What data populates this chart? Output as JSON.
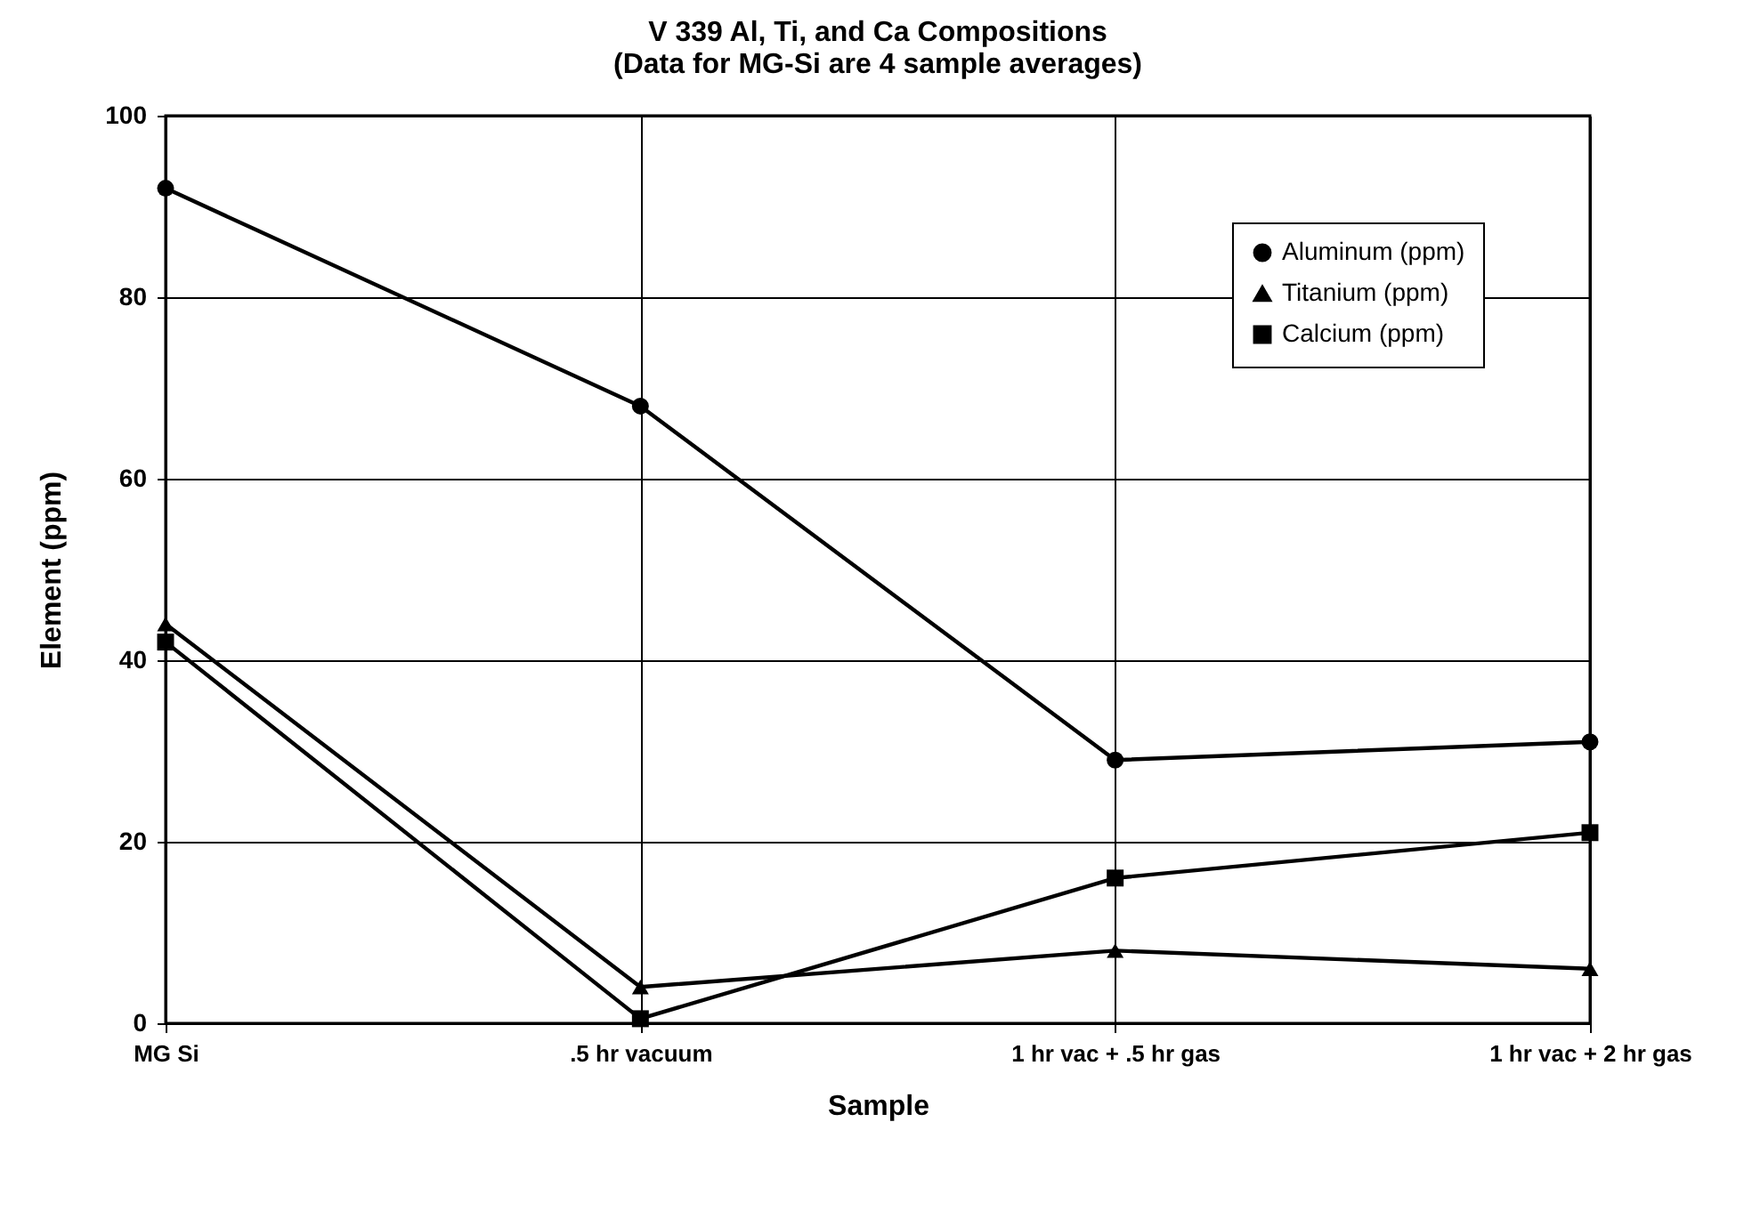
{
  "chart_data": {
    "type": "line",
    "title": "V 339 Al, Ti, and Ca Compositions",
    "subtitle": "(Data for MG-Si are 4 sample averages)",
    "xlabel": "Sample",
    "ylabel": "Element (ppm)",
    "categories": [
      "MG Si",
      ".5 hr vacuum",
      "1 hr vac + .5 hr gas",
      "1 hr vac + 2 hr gas"
    ],
    "series": [
      {
        "name": "Aluminum (ppm)",
        "color": "#000000",
        "marker": "circle",
        "values": [
          92,
          68,
          29,
          31
        ]
      },
      {
        "name": "Titanium (ppm)",
        "color": "#000000",
        "marker": "triangle",
        "values": [
          44,
          4,
          8,
          6
        ]
      },
      {
        "name": "Calcium (ppm)",
        "color": "#000000",
        "marker": "square",
        "values": [
          42,
          0.5,
          16,
          21
        ]
      }
    ],
    "ylim": [
      0,
      100
    ],
    "yticks": [
      0,
      20,
      40,
      60,
      80,
      100
    ],
    "grid": true,
    "legend": "top right",
    "line_style": "solid"
  }
}
